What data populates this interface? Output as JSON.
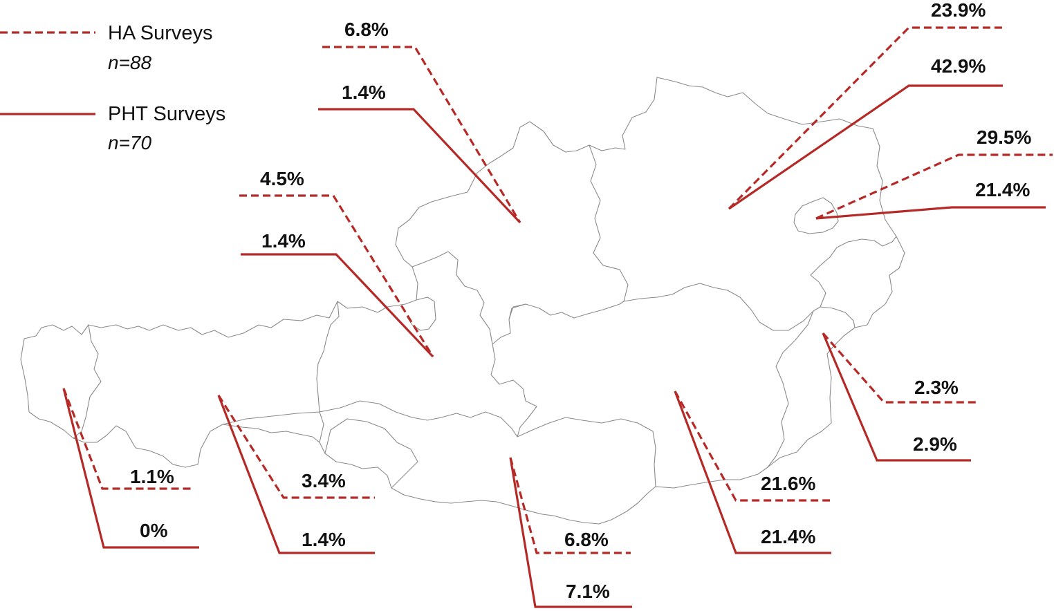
{
  "colors": {
    "leader": "#b52a26",
    "border": "#8a8a8a"
  },
  "legend": {
    "ha": {
      "label": "HA Surveys",
      "n": "n=88",
      "line_style": "dashed"
    },
    "pht": {
      "label": "PHT Surveys",
      "n": "n=70",
      "line_style": "solid"
    }
  },
  "regions": [
    {
      "id": "vorarlberg",
      "ha": "1.1%",
      "pht": "0%"
    },
    {
      "id": "tyrol",
      "ha": "3.4%",
      "pht": "1.4%"
    },
    {
      "id": "salzburg",
      "ha": "4.5%",
      "pht": "1.4%"
    },
    {
      "id": "upper-austria",
      "ha": "6.8%",
      "pht": "1.4%"
    },
    {
      "id": "carinthia",
      "ha": "6.8%",
      "pht": "7.1%"
    },
    {
      "id": "styria",
      "ha": "21.6%",
      "pht": "21.4%"
    },
    {
      "id": "lower-austria",
      "ha": "23.9%",
      "pht": "42.9%"
    },
    {
      "id": "vienna",
      "ha": "29.5%",
      "pht": "21.4%"
    },
    {
      "id": "burgenland",
      "ha": "2.3%",
      "pht": "2.9%"
    }
  ]
}
